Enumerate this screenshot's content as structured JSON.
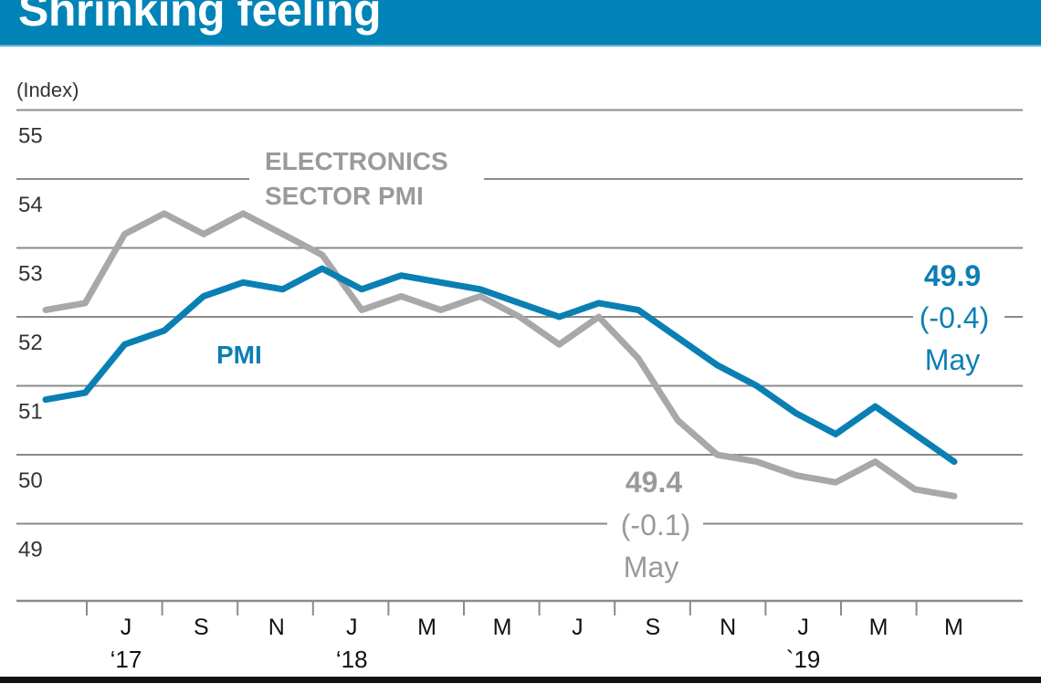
{
  "title": "Shrinking feeling",
  "colors": {
    "title_bar": "#0083b6",
    "pmi": "#0a7fb3",
    "electronics": "#a8a8aa",
    "electronics_label": "#9a9a9c",
    "grid": "#8a8a8a",
    "text": "#333333"
  },
  "chart_data": {
    "type": "line",
    "title": "Shrinking feeling",
    "ylabel": "(Index)",
    "xlabel": "",
    "ylim": [
      48.2,
      55.5
    ],
    "yticks": [
      55,
      54,
      53,
      52,
      51,
      50,
      49
    ],
    "grid": true,
    "x": [
      "Jun'17",
      "Jul'17",
      "Aug'17",
      "Sep'17",
      "Oct'17",
      "Nov'17",
      "Dec'17",
      "Jan'18",
      "Feb'18",
      "Mar'18",
      "Apr'18",
      "May'18",
      "Jun'18",
      "Jul'18",
      "Aug'18",
      "Sep'18",
      "Oct'18",
      "Nov'18",
      "Dec'18",
      "Jan'19",
      "Feb'19",
      "Mar'19",
      "Apr'19",
      "May'19"
    ],
    "x_tick_labels": [
      {
        "label": "J",
        "year": "‘17"
      },
      {
        "label": "S",
        "year": ""
      },
      {
        "label": "N",
        "year": ""
      },
      {
        "label": "J",
        "year": "‘18"
      },
      {
        "label": "M",
        "year": ""
      },
      {
        "label": "M",
        "year": ""
      },
      {
        "label": "J",
        "year": ""
      },
      {
        "label": "S",
        "year": ""
      },
      {
        "label": "N",
        "year": ""
      },
      {
        "label": "J",
        "year": "`19"
      },
      {
        "label": "M",
        "year": ""
      },
      {
        "label": "M",
        "year": ""
      }
    ],
    "series": [
      {
        "name": "ELECTRONICS SECTOR PMI",
        "label_lines": [
          "ELECTRONICS",
          "SECTOR PMI"
        ],
        "values": [
          52.1,
          52.2,
          53.2,
          53.5,
          53.2,
          53.5,
          53.2,
          52.9,
          52.1,
          52.3,
          52.1,
          52.3,
          52.0,
          51.6,
          52.0,
          51.4,
          50.5,
          50.0,
          49.9,
          49.7,
          49.6,
          49.9,
          49.5,
          49.4
        ],
        "annotation": {
          "value": "49.4",
          "change": "(-0.1)",
          "month": "May"
        }
      },
      {
        "name": "PMI",
        "label_lines": [
          "PMI"
        ],
        "values": [
          50.8,
          50.9,
          51.6,
          51.8,
          52.3,
          52.5,
          52.4,
          52.7,
          52.4,
          52.6,
          52.5,
          52.4,
          52.2,
          52.0,
          52.2,
          52.1,
          51.7,
          51.3,
          51.0,
          50.6,
          50.3,
          50.7,
          50.3,
          49.9
        ],
        "annotation": {
          "value": "49.9",
          "change": "(-0.4)",
          "month": "May"
        }
      }
    ]
  }
}
